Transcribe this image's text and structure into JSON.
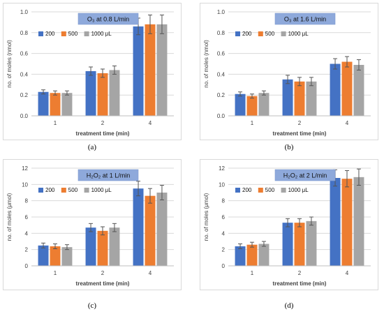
{
  "captions": [
    "(a)",
    "(b)",
    "(c)",
    "(d)"
  ],
  "colors": {
    "s200": "#4472c4",
    "s500": "#ed7d31",
    "s1000": "#a5a5a5",
    "title_bg": "#8ea9db"
  },
  "chart_data": [
    {
      "type": "bar",
      "title": "O₃ at 0.8 L/min",
      "xlabel": "treatment time (min)",
      "ylabel": "no. of moles (nmol)",
      "categories": [
        "1",
        "2",
        "4"
      ],
      "ylim": [
        0,
        1.0
      ],
      "yticks": [
        "0.0",
        "0.2",
        "0.4",
        "0.6",
        "0.8",
        "1.0"
      ],
      "legend_position": "top-left",
      "series": [
        {
          "name": "200",
          "values": [
            0.23,
            0.43,
            0.86
          ],
          "errors": [
            0.02,
            0.04,
            0.08
          ]
        },
        {
          "name": "500",
          "values": [
            0.22,
            0.41,
            0.88
          ],
          "errors": [
            0.02,
            0.04,
            0.09
          ]
        },
        {
          "name": "1000 μL",
          "values": [
            0.22,
            0.44,
            0.88
          ],
          "errors": [
            0.02,
            0.04,
            0.09
          ]
        }
      ]
    },
    {
      "type": "bar",
      "title": "O₃ at 1.6 L/min",
      "xlabel": "treatment time (min)",
      "ylabel": "no. of moles (nmol)",
      "categories": [
        "1",
        "2",
        "4"
      ],
      "ylim": [
        0,
        1.0
      ],
      "yticks": [
        "0.0",
        "0.2",
        "0.4",
        "0.6",
        "0.8",
        "1.0"
      ],
      "legend_position": "top-left",
      "series": [
        {
          "name": "200",
          "values": [
            0.21,
            0.35,
            0.5
          ],
          "errors": [
            0.02,
            0.04,
            0.05
          ]
        },
        {
          "name": "500",
          "values": [
            0.19,
            0.33,
            0.52
          ],
          "errors": [
            0.02,
            0.04,
            0.05
          ]
        },
        {
          "name": "1000 μL",
          "values": [
            0.22,
            0.33,
            0.49
          ],
          "errors": [
            0.02,
            0.04,
            0.05
          ]
        }
      ]
    },
    {
      "type": "bar",
      "title": "H₂O₂ at 1 L/min",
      "xlabel": "treatment time (min)",
      "ylabel": "no. of moles (μmol)",
      "categories": [
        "1",
        "2",
        "4"
      ],
      "ylim": [
        0,
        12
      ],
      "yticks": [
        "0",
        "2",
        "4",
        "6",
        "8",
        "10",
        "12"
      ],
      "legend_position": "top-left",
      "series": [
        {
          "name": "200",
          "values": [
            2.5,
            4.7,
            9.5
          ],
          "errors": [
            0.3,
            0.5,
            0.9
          ]
        },
        {
          "name": "500",
          "values": [
            2.4,
            4.3,
            8.6
          ],
          "errors": [
            0.3,
            0.5,
            0.9
          ]
        },
        {
          "name": "1000 μL",
          "values": [
            2.3,
            4.7,
            9.0
          ],
          "errors": [
            0.3,
            0.5,
            0.9
          ]
        }
      ]
    },
    {
      "type": "bar",
      "title": "H₂O₂ at 2 L/min",
      "xlabel": "treatment time (min)",
      "ylabel": "no. of moles (μmol)",
      "categories": [
        "1",
        "2",
        "4"
      ],
      "ylim": [
        0,
        12
      ],
      "yticks": [
        "0",
        "2",
        "4",
        "6",
        "8",
        "10",
        "12"
      ],
      "legend_position": "top-left",
      "series": [
        {
          "name": "200",
          "values": [
            2.4,
            5.3,
            10.8
          ],
          "errors": [
            0.3,
            0.5,
            1.0
          ]
        },
        {
          "name": "500",
          "values": [
            2.6,
            5.3,
            10.7
          ],
          "errors": [
            0.3,
            0.5,
            1.0
          ]
        },
        {
          "name": "1000 μL",
          "values": [
            2.7,
            5.5,
            10.9
          ],
          "errors": [
            0.3,
            0.5,
            1.0
          ]
        }
      ]
    }
  ]
}
